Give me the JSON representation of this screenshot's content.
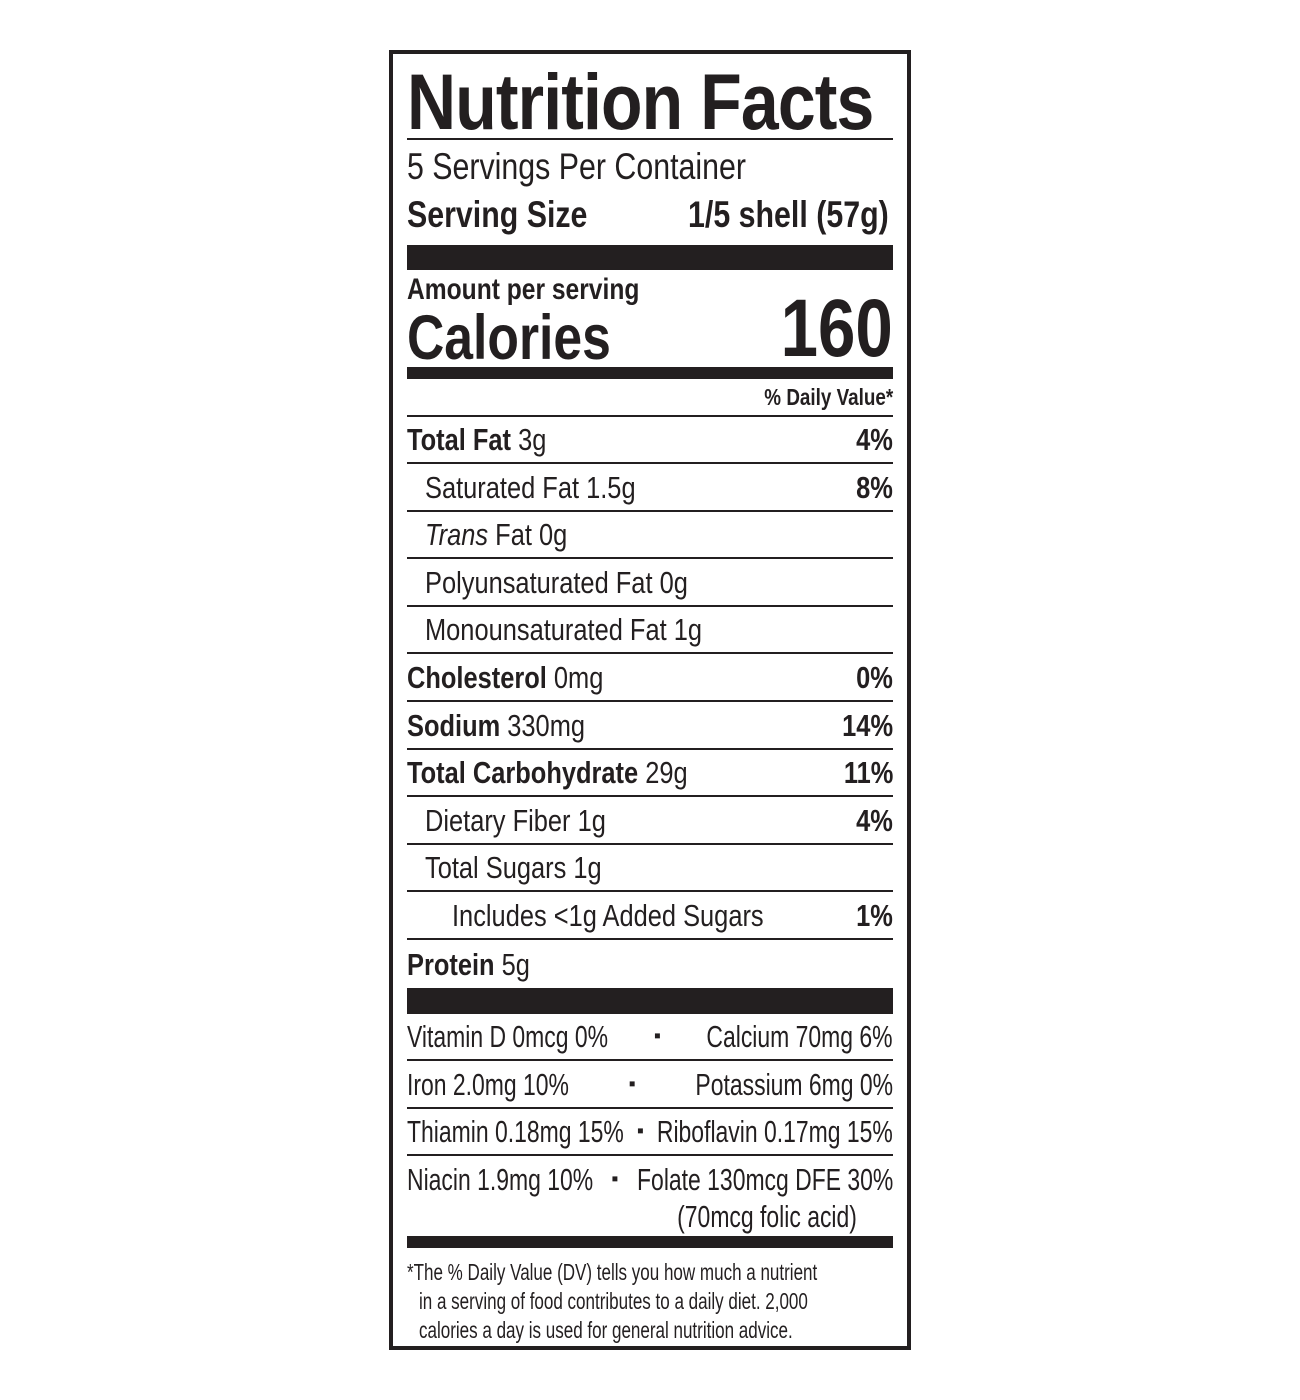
{
  "title": "Nutrition Facts",
  "servings_per_container": "5 Servings Per Container",
  "serving_size_label": "Serving Size",
  "serving_size_value": "1/5 shell (57g)",
  "amount_per_serving": "Amount per serving",
  "calories_label": "Calories",
  "calories_value": "160",
  "daily_value_header": "% Daily Value*",
  "nutrients": [
    {
      "name": "Total Fat",
      "amount": "3g",
      "dv": "4%",
      "bold": true,
      "indent": 0
    },
    {
      "name": "Saturated Fat",
      "amount": "1.5g",
      "dv": "8%",
      "bold": false,
      "indent": 1
    },
    {
      "name": "Trans",
      "name_suffix": "Fat",
      "amount": "0g",
      "dv": "",
      "bold": false,
      "indent": 1
    },
    {
      "name": "Polyunsaturated Fat",
      "amount": "0g",
      "dv": "",
      "bold": false,
      "indent": 1
    },
    {
      "name": "Monounsaturated Fat",
      "amount": "1g",
      "dv": "",
      "bold": false,
      "indent": 1
    },
    {
      "name": "Cholesterol",
      "amount": "0mg",
      "dv": "0%",
      "bold": true,
      "indent": 0
    },
    {
      "name": "Sodium",
      "amount": "330mg",
      "dv": "14%",
      "bold": true,
      "indent": 0
    },
    {
      "name": "Total Carbohydrate",
      "amount": "29g",
      "dv": "11%",
      "bold": true,
      "indent": 0
    },
    {
      "name": "Dietary Fiber",
      "amount": "1g",
      "dv": "4%",
      "bold": false,
      "indent": 1
    },
    {
      "name": "Total Sugars",
      "amount": "1g",
      "dv": "",
      "bold": false,
      "indent": 1
    },
    {
      "name": "Includes <1g Added Sugars",
      "amount": "",
      "dv": "1%",
      "bold": false,
      "indent": 2
    },
    {
      "name": "Protein",
      "amount": "5g",
      "dv": "",
      "bold": true,
      "indent": 0
    }
  ],
  "vitamins": [
    {
      "left": "Vitamin D 0mcg 0%",
      "right": "Calcium 70mg 6%"
    },
    {
      "left": "Iron 2.0mg 10%",
      "right": "Potassium 6mg 0%"
    },
    {
      "left": "Thiamin 0.18mg 15%",
      "right": "Riboflavin 0.17mg 15%"
    },
    {
      "left": "Niacin 1.9mg 10%",
      "right": "Folate 130mcg DFE 30%",
      "right_note": "(70mcg folic acid)"
    }
  ],
  "separator": "▪",
  "footnote": [
    "*The % Daily Value (DV) tells you how much a nutrient",
    "in a serving of food contributes to a daily diet. 2,000",
    "calories a day is used for general nutrition advice."
  ]
}
